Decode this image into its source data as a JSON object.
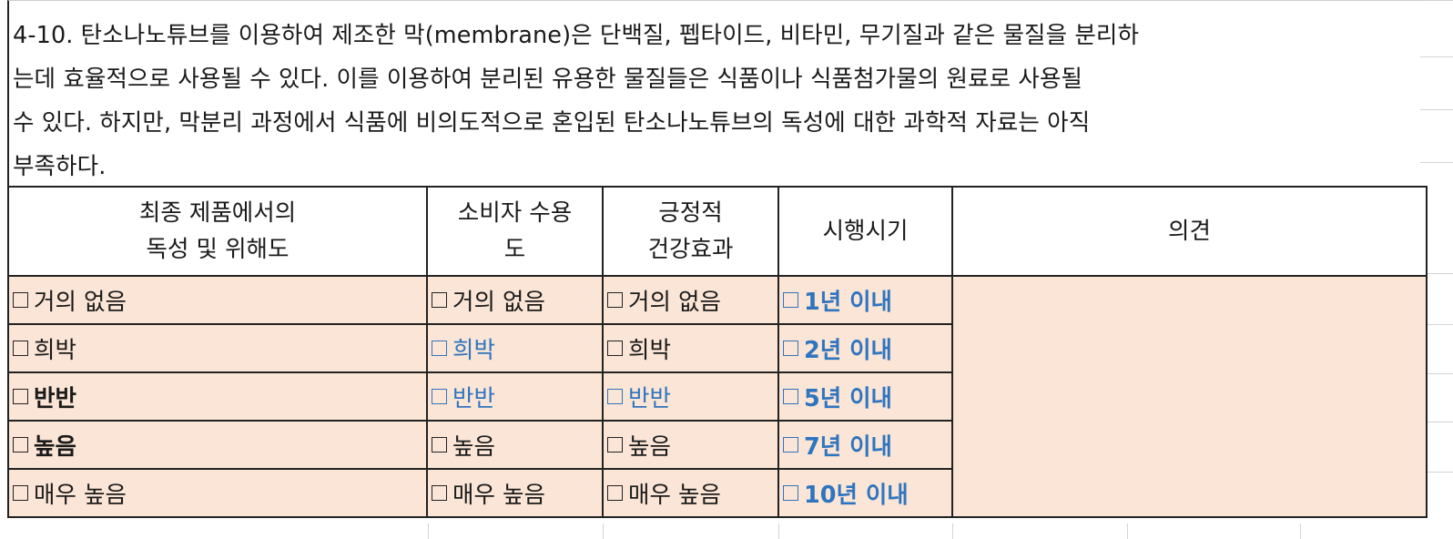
{
  "question": {
    "lines": [
      "4-10. 탄소나노튜브를 이용하여 제조한 막(membrane)은 단백질, 펩타이드, 비타민, 무기질과 같은 물질을 분리하",
      "는데 효율적으로 사용될 수 있다. 이를 이용하여 분리된 유용한 물질들은 식품이나 식품첨가물의 원료로 사용될",
      "수 있다. 하지만, 막분리 과정에서 식품에 비의도적으로 혼입된 탄소나노튜브의 독성에 대한 과학적 자료는 아직",
      "부족하다."
    ]
  },
  "table": {
    "headers": {
      "toxicity": [
        "최종 제품에서의",
        "독성 및 위해도"
      ],
      "acceptance": [
        "소비자 수용",
        "도"
      ],
      "health": [
        "긍정적",
        "건강효과"
      ],
      "timing": [
        "시행시기"
      ],
      "opinion": [
        "의견"
      ]
    },
    "toxicity": [
      {
        "label": "거의 없음",
        "style": "normal"
      },
      {
        "label": "희박",
        "style": "normal"
      },
      {
        "label": "반반",
        "style": "bold"
      },
      {
        "label": "높음",
        "style": "bold"
      },
      {
        "label": "매우 높음",
        "style": "normal"
      }
    ],
    "acceptance": [
      {
        "label": "거의 없음",
        "style": "normal"
      },
      {
        "label": "희박",
        "style": "blue"
      },
      {
        "label": "반반",
        "style": "blue"
      },
      {
        "label": "높음",
        "style": "normal"
      },
      {
        "label": "매우 높음",
        "style": "normal"
      }
    ],
    "health": [
      {
        "label": "거의 없음",
        "style": "normal"
      },
      {
        "label": "희박",
        "style": "normal"
      },
      {
        "label": "반반",
        "style": "blue"
      },
      {
        "label": "높음",
        "style": "normal"
      },
      {
        "label": "매우 높음",
        "style": "normal"
      }
    ],
    "timing": [
      {
        "label": "1년 이내",
        "style": "blue-bold"
      },
      {
        "label": "2년 이내",
        "style": "blue-bold"
      },
      {
        "label": "5년 이내",
        "style": "blue-bold"
      },
      {
        "label": "7년 이내",
        "style": "blue-bold"
      },
      {
        "label": "10년 이내",
        "style": "blue-bold"
      }
    ],
    "opinion": ""
  },
  "colors": {
    "option_fill": "#fbe5d6",
    "highlight_text": "#2e75c0",
    "border": "#222222"
  },
  "icons": {
    "checkbox": "checkbox-empty-icon"
  }
}
